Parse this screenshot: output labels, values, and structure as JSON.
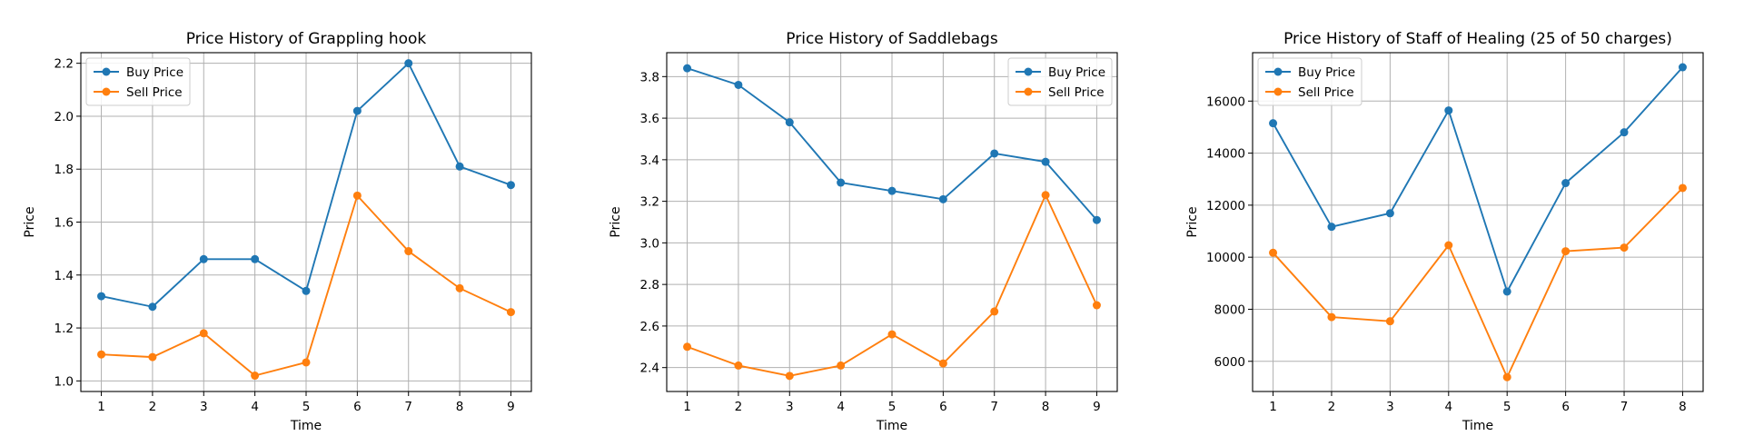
{
  "colors": {
    "buy": "#1f77b4",
    "sell": "#ff7f0e",
    "grid": "#b0b0b0",
    "axis": "#000000"
  },
  "legend_labels": [
    "Buy Price",
    "Sell Price"
  ],
  "chart_data": [
    {
      "type": "line",
      "title": "Price History of Grappling hook",
      "xlabel": "Time",
      "ylabel": "Price",
      "x": [
        1,
        2,
        3,
        4,
        5,
        6,
        7,
        8,
        9
      ],
      "xlim": [
        0.6,
        9.4
      ],
      "ylim": [
        0.96,
        2.24
      ],
      "yticks": [
        1.0,
        1.2,
        1.4,
        1.6,
        1.8,
        2.0,
        2.2
      ],
      "ytick_labels": [
        "1.0",
        "1.2",
        "1.4",
        "1.6",
        "1.8",
        "2.0",
        "2.2"
      ],
      "legend_loc": "upper left",
      "grid": true,
      "series": [
        {
          "name": "Buy Price",
          "values": [
            1.32,
            1.28,
            1.46,
            1.46,
            1.34,
            2.02,
            2.2,
            1.81,
            1.74
          ]
        },
        {
          "name": "Sell Price",
          "values": [
            1.1,
            1.09,
            1.18,
            1.02,
            1.07,
            1.7,
            1.49,
            1.35,
            1.26
          ]
        }
      ]
    },
    {
      "type": "line",
      "title": "Price History of Saddlebags",
      "xlabel": "Time",
      "ylabel": "Price",
      "x": [
        1,
        2,
        3,
        4,
        5,
        6,
        7,
        8,
        9
      ],
      "xlim": [
        0.6,
        9.4
      ],
      "ylim": [
        2.285,
        3.915
      ],
      "yticks": [
        2.4,
        2.6,
        2.8,
        3.0,
        3.2,
        3.4,
        3.6,
        3.8
      ],
      "ytick_labels": [
        "2.4",
        "2.6",
        "2.8",
        "3.0",
        "3.2",
        "3.4",
        "3.6",
        "3.8"
      ],
      "legend_loc": "upper right",
      "grid": true,
      "series": [
        {
          "name": "Buy Price",
          "values": [
            3.84,
            3.76,
            3.58,
            3.29,
            3.25,
            3.21,
            3.43,
            3.39,
            3.11
          ]
        },
        {
          "name": "Sell Price",
          "values": [
            2.5,
            2.41,
            2.36,
            2.41,
            2.56,
            2.42,
            2.67,
            3.23,
            2.7
          ]
        }
      ]
    },
    {
      "type": "line",
      "title": "Price History of Staff of Healing (25 of 50 charges)",
      "xlabel": "Time",
      "ylabel": "Price",
      "x": [
        1,
        2,
        3,
        4,
        5,
        6,
        7,
        8
      ],
      "xlim": [
        0.65,
        8.35
      ],
      "ylim": [
        4840,
        17860
      ],
      "yticks": [
        6000,
        8000,
        10000,
        12000,
        14000,
        16000
      ],
      "ytick_labels": [
        "6000",
        "8000",
        "10000",
        "12000",
        "14000",
        "16000"
      ],
      "legend_loc": "upper left",
      "grid": true,
      "series": [
        {
          "name": "Buy Price",
          "values": [
            15150,
            11170,
            11690,
            15640,
            8680,
            12850,
            14800,
            17300
          ]
        },
        {
          "name": "Sell Price",
          "values": [
            10170,
            7700,
            7540,
            10460,
            5390,
            10230,
            10370,
            12660
          ]
        }
      ]
    }
  ]
}
